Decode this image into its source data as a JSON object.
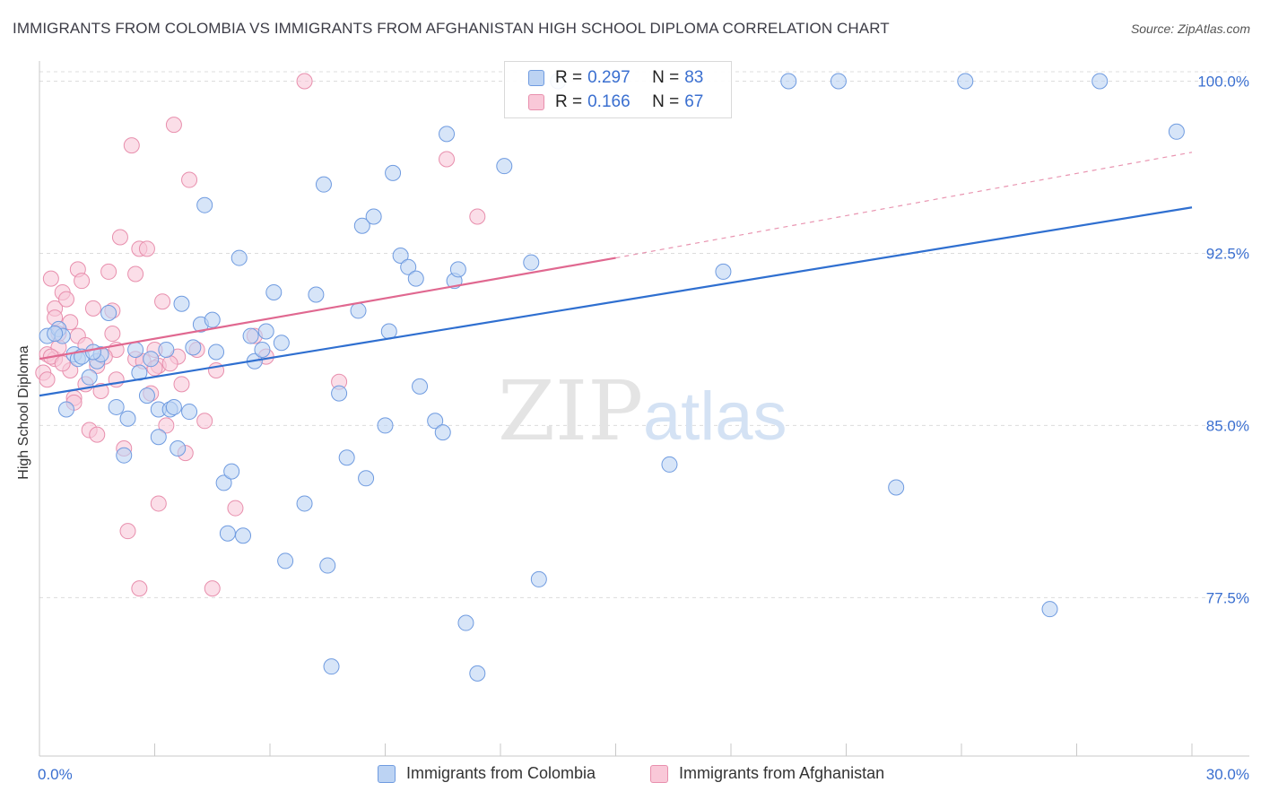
{
  "title": "IMMIGRANTS FROM COLOMBIA VS IMMIGRANTS FROM AFGHANISTAN HIGH SCHOOL DIPLOMA CORRELATION CHART",
  "source": "Source: ZipAtlas.com",
  "watermark": {
    "zip": "ZIP",
    "atlas": "atlas"
  },
  "legend": {
    "r_label": "R =",
    "n_label": "N =",
    "series": [
      {
        "r": "0.297",
        "n": "83"
      },
      {
        "r": "0.166",
        "n": "67"
      }
    ]
  },
  "colors": {
    "blue_fill": "#bcd3f3",
    "blue_stroke": "#6f9be0",
    "blue_line": "#2f6fd0",
    "pink_fill": "#f9c8d8",
    "pink_stroke": "#e88fad",
    "pink_line": "#e06890",
    "tick_text": "#3a6fd0",
    "grid": "#dcdcdc"
  },
  "chart_data": {
    "type": "scatter",
    "title": "IMMIGRANTS FROM COLOMBIA VS IMMIGRANTS FROM AFGHANISTAN HIGH SCHOOL DIPLOMA CORRELATION CHART",
    "xlabel": "",
    "ylabel": "High School Diploma",
    "xlim": [
      0,
      30
    ],
    "ylim": [
      70.6,
      100.8
    ],
    "x_tick_labels": [
      {
        "value": 0,
        "label": "0.0%"
      },
      {
        "value": 30,
        "label": "30.0%"
      }
    ],
    "y_ticks": [
      {
        "value": 77.5,
        "label": "77.5%"
      },
      {
        "value": 85.0,
        "label": "85.0%"
      },
      {
        "value": 92.5,
        "label": "92.5%"
      },
      {
        "value": 100.0,
        "label": "100.0%"
      }
    ],
    "grid": true,
    "legend_position": "bottom",
    "series": [
      {
        "name": "Immigrants from Colombia",
        "color": "blue",
        "trend": {
          "x": [
            0,
            30
          ],
          "y": [
            86.3,
            94.5
          ],
          "style": "solid"
        },
        "points": [
          [
            0.2,
            88.9
          ],
          [
            0.5,
            89.2
          ],
          [
            0.6,
            88.9
          ],
          [
            0.7,
            85.7
          ],
          [
            0.9,
            88.1
          ],
          [
            1.0,
            87.9
          ],
          [
            1.1,
            88.0
          ],
          [
            1.3,
            87.1
          ],
          [
            1.5,
            87.8
          ],
          [
            1.6,
            88.1
          ],
          [
            1.8,
            89.9
          ],
          [
            2.0,
            85.8
          ],
          [
            2.3,
            85.3
          ],
          [
            2.5,
            88.3
          ],
          [
            2.6,
            87.3
          ],
          [
            2.8,
            86.3
          ],
          [
            2.2,
            83.7
          ],
          [
            3.1,
            85.7
          ],
          [
            3.1,
            84.5
          ],
          [
            3.3,
            88.3
          ],
          [
            3.4,
            85.7
          ],
          [
            3.5,
            85.8
          ],
          [
            3.7,
            90.3
          ],
          [
            3.9,
            85.6
          ],
          [
            4.0,
            88.4
          ],
          [
            4.2,
            89.4
          ],
          [
            4.3,
            94.6
          ],
          [
            4.5,
            89.6
          ],
          [
            4.6,
            88.2
          ],
          [
            4.8,
            82.5
          ],
          [
            4.9,
            80.3
          ],
          [
            5.0,
            83.0
          ],
          [
            5.2,
            92.3
          ],
          [
            5.3,
            80.2
          ],
          [
            5.6,
            87.8
          ],
          [
            5.8,
            88.3
          ],
          [
            5.9,
            89.1
          ],
          [
            6.1,
            90.8
          ],
          [
            6.3,
            88.6
          ],
          [
            6.4,
            79.1
          ],
          [
            6.9,
            81.6
          ],
          [
            7.2,
            90.7
          ],
          [
            7.4,
            95.5
          ],
          [
            7.5,
            78.9
          ],
          [
            7.6,
            74.5
          ],
          [
            7.8,
            86.4
          ],
          [
            8.0,
            83.6
          ],
          [
            8.3,
            90.0
          ],
          [
            8.4,
            93.7
          ],
          [
            8.5,
            82.7
          ],
          [
            8.7,
            94.1
          ],
          [
            9.0,
            85.0
          ],
          [
            9.2,
            96.0
          ],
          [
            9.4,
            92.4
          ],
          [
            9.6,
            91.9
          ],
          [
            9.8,
            91.4
          ],
          [
            9.9,
            86.7
          ],
          [
            10.3,
            85.2
          ],
          [
            10.5,
            84.7
          ],
          [
            10.6,
            97.7
          ],
          [
            10.8,
            91.3
          ],
          [
            10.9,
            91.8
          ],
          [
            11.1,
            76.4
          ],
          [
            11.4,
            74.2
          ],
          [
            12.1,
            96.3
          ],
          [
            12.8,
            92.1
          ],
          [
            13.0,
            78.3
          ],
          [
            13.5,
            100.0
          ],
          [
            16.4,
            83.3
          ],
          [
            17.8,
            91.7
          ],
          [
            19.5,
            100.0
          ],
          [
            20.8,
            100.0
          ],
          [
            22.3,
            82.3
          ],
          [
            24.1,
            100.0
          ],
          [
            26.3,
            77.0
          ],
          [
            27.6,
            100.0
          ],
          [
            29.6,
            97.8
          ],
          [
            0.4,
            89.0
          ],
          [
            1.4,
            88.2
          ],
          [
            2.9,
            87.9
          ],
          [
            5.5,
            88.9
          ],
          [
            9.1,
            89.1
          ],
          [
            3.6,
            84.0
          ]
        ]
      },
      {
        "name": "Immigrants from Afghanistan",
        "color": "pink",
        "trend": {
          "x": [
            0,
            15
          ],
          "y": [
            87.9,
            92.3
          ],
          "style": "solid",
          "extended": {
            "x": [
              15,
              30
            ],
            "y": [
              92.3,
              96.9
            ],
            "style": "dashed"
          }
        },
        "points": [
          [
            0.1,
            87.3
          ],
          [
            0.2,
            88.1
          ],
          [
            0.3,
            91.4
          ],
          [
            0.4,
            87.9
          ],
          [
            0.4,
            90.1
          ],
          [
            0.5,
            88.4
          ],
          [
            0.6,
            90.8
          ],
          [
            0.7,
            90.5
          ],
          [
            0.8,
            87.4
          ],
          [
            0.9,
            86.2
          ],
          [
            1.0,
            88.9
          ],
          [
            1.0,
            91.8
          ],
          [
            1.1,
            91.3
          ],
          [
            1.2,
            86.8
          ],
          [
            1.3,
            84.8
          ],
          [
            1.4,
            90.1
          ],
          [
            1.5,
            84.6
          ],
          [
            1.5,
            87.6
          ],
          [
            1.6,
            86.5
          ],
          [
            1.8,
            91.7
          ],
          [
            1.9,
            90.0
          ],
          [
            2.0,
            88.3
          ],
          [
            2.1,
            93.2
          ],
          [
            2.2,
            84.0
          ],
          [
            2.3,
            80.4
          ],
          [
            2.4,
            97.2
          ],
          [
            2.5,
            91.6
          ],
          [
            2.5,
            87.9
          ],
          [
            2.6,
            92.7
          ],
          [
            2.6,
            77.9
          ],
          [
            2.8,
            92.7
          ],
          [
            2.9,
            86.4
          ],
          [
            3.0,
            88.3
          ],
          [
            3.1,
            87.6
          ],
          [
            3.1,
            81.6
          ],
          [
            3.2,
            90.4
          ],
          [
            3.3,
            85.0
          ],
          [
            3.5,
            98.1
          ],
          [
            3.6,
            88.0
          ],
          [
            3.7,
            86.8
          ],
          [
            3.8,
            83.8
          ],
          [
            3.9,
            95.7
          ],
          [
            4.1,
            88.3
          ],
          [
            4.3,
            85.2
          ],
          [
            4.5,
            77.9
          ],
          [
            4.6,
            87.4
          ],
          [
            5.1,
            81.4
          ],
          [
            5.6,
            88.9
          ],
          [
            5.9,
            88.0
          ],
          [
            6.9,
            100.0
          ],
          [
            7.8,
            86.9
          ],
          [
            10.6,
            96.6
          ],
          [
            11.4,
            94.1
          ],
          [
            0.2,
            87.0
          ],
          [
            0.5,
            89.0
          ],
          [
            0.8,
            89.5
          ],
          [
            1.2,
            88.5
          ],
          [
            1.7,
            88.0
          ],
          [
            2.7,
            87.8
          ],
          [
            3.0,
            87.5
          ],
          [
            0.3,
            88.0
          ],
          [
            0.6,
            87.7
          ],
          [
            1.9,
            89.0
          ],
          [
            3.4,
            87.7
          ],
          [
            0.9,
            86.0
          ],
          [
            2.0,
            87.0
          ],
          [
            0.4,
            89.7
          ]
        ]
      }
    ]
  },
  "bottom_legend": [
    {
      "label": "Immigrants from Colombia"
    },
    {
      "label": "Immigrants from Afghanistan"
    }
  ]
}
